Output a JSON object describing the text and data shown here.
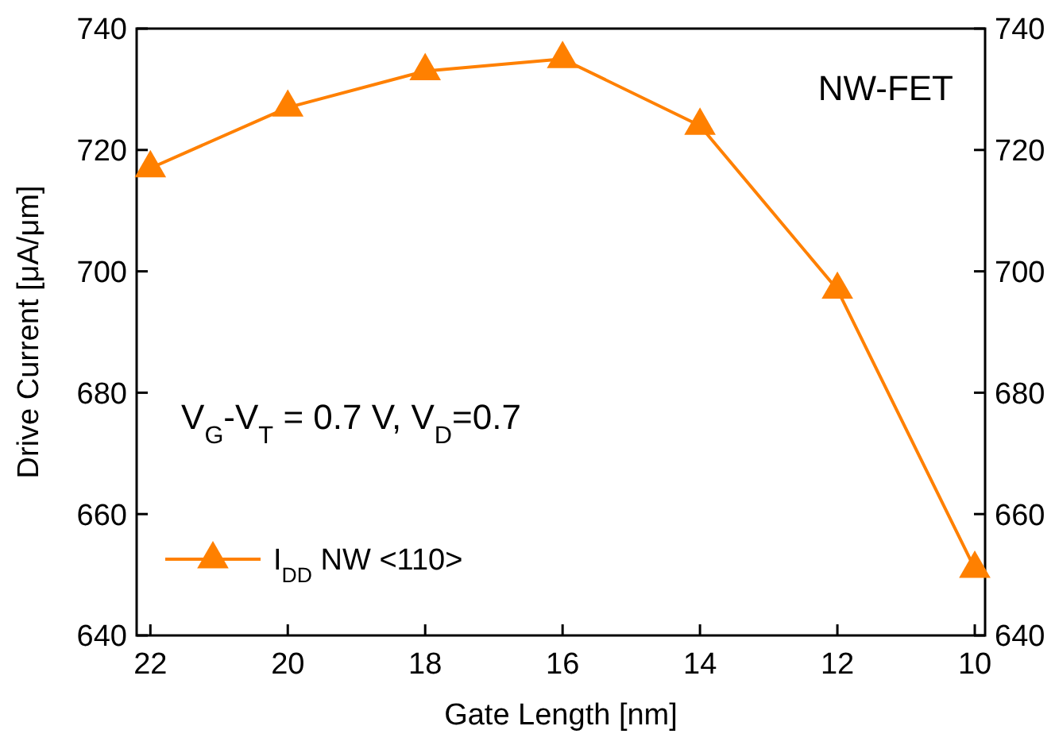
{
  "chart_data": {
    "type": "line",
    "xlabel": "Gate Length [nm]",
    "ylabel": "Drive Current [μA/μm]",
    "x": [
      22,
      20,
      18,
      16,
      14,
      12,
      10
    ],
    "series": [
      {
        "name": "I$_{DD}$ NW <110>",
        "color": "#ff8000",
        "values": [
          717,
          727,
          733,
          735,
          724,
          697,
          651
        ]
      }
    ],
    "xlim": [
      22.2,
      9.85
    ],
    "xticks": [
      22,
      20,
      18,
      16,
      14,
      12,
      10
    ],
    "ylim": [
      640,
      740
    ],
    "yticks": [
      640,
      660,
      680,
      700,
      720,
      740
    ],
    "y2lim": [
      640,
      740
    ],
    "y2ticks": [
      640,
      660,
      680,
      700,
      720,
      740
    ],
    "annotations": [
      "NW-FET",
      "V$_{G}$-V$_{T}$ = 0.7 V, V$_{D}$=0.7"
    ],
    "marker": "triangle",
    "line_style": "solid",
    "grid": false,
    "legend": "bottom left"
  }
}
